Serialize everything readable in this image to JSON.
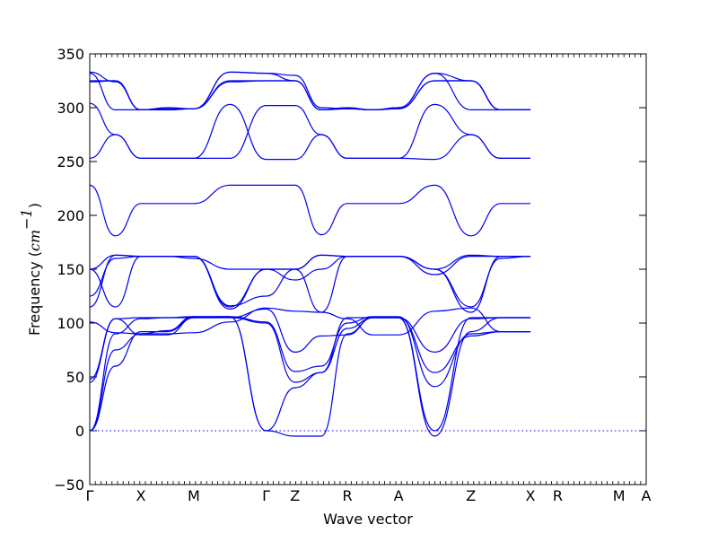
{
  "chart_data": {
    "type": "line",
    "title": "",
    "xlabel": "Wave vector",
    "ylabel": "Frequency",
    "ylabel_unit": "cm",
    "ylabel_unit_exp": "−1",
    "ylim": [
      -50,
      350
    ],
    "yticks": [
      -50,
      0,
      50,
      100,
      150,
      200,
      250,
      300,
      350
    ],
    "ytick_labels": [
      "−50",
      "0",
      "50",
      "100",
      "150",
      "200",
      "250",
      "300",
      "350"
    ],
    "xlim": [
      0,
      100
    ],
    "high_symmetry_points": [
      {
        "label": "Γ",
        "x": 0
      },
      {
        "label": "X",
        "x": 9.2
      },
      {
        "label": "M",
        "x": 18.7
      },
      {
        "label": "Γ",
        "x": 31.7
      },
      {
        "label": "Z",
        "x": 36.9
      },
      {
        "label": "R",
        "x": 46.3
      },
      {
        "label": "A",
        "x": 55.5
      },
      {
        "label": "Z",
        "x": 68.5
      },
      {
        "label": "X",
        "x": 79.2
      },
      {
        "label": "R",
        "x": 84.1
      },
      {
        "label": "M",
        "x": 95.1
      },
      {
        "label": "A",
        "x": 100
      }
    ],
    "zero_line": 0,
    "line_color": "#0000ee",
    "zero_line_color": "#0000ee",
    "series": [
      {
        "values": [
          0,
          60,
          92,
          92,
          105,
          105,
          100,
          45,
          54,
          95,
          105,
          105,
          54,
          88,
          92,
          92
        ]
      },
      {
        "values": [
          0,
          75,
          90,
          93,
          106,
          106,
          101,
          55,
          60,
          100,
          106,
          106,
          41,
          90,
          92,
          92
        ]
      },
      {
        "values": [
          0,
          90,
          104,
          105,
          106,
          106,
          0,
          -5,
          -5,
          90,
          105,
          105,
          -5,
          92,
          105,
          105
        ]
      },
      {
        "values": [
          45,
          104,
          105,
          105,
          105,
          106,
          0,
          40,
          54,
          105,
          105,
          105,
          0,
          105,
          105,
          105
        ]
      },
      {
        "values": [
          48,
          104,
          89,
          89,
          105,
          105,
          113,
          73,
          88,
          89,
          105,
          105,
          73,
          104,
          105,
          105
        ]
      },
      {
        "values": [
          101,
          91,
          90,
          90,
          91,
          101,
          114,
          111,
          110,
          104,
          89,
          89,
          111,
          114,
          92,
          92
        ]
      },
      {
        "values": [
          115,
          163,
          162,
          162,
          162,
          116,
          125,
          150,
          163,
          162,
          162,
          162,
          150,
          110,
          162,
          162
        ]
      },
      {
        "values": [
          125,
          160,
          162,
          162,
          162,
          113,
          150,
          140,
          150,
          162,
          162,
          162,
          145,
          162,
          162,
          162
        ]
      },
      {
        "values": [
          150,
          163,
          162,
          162,
          162,
          115,
          150,
          150,
          163,
          162,
          162,
          162,
          150,
          163,
          162,
          162
        ]
      },
      {
        "values": [
          150,
          115,
          162,
          162,
          160,
          150,
          150,
          150,
          110,
          162,
          162,
          162,
          150,
          115,
          160,
          162
        ]
      },
      {
        "values": [
          228,
          181,
          211,
          211,
          211,
          228,
          228,
          228,
          182,
          211,
          211,
          211,
          228,
          181,
          211,
          211
        ]
      },
      {
        "values": [
          253,
          275,
          253,
          253,
          253,
          303,
          252,
          252,
          275,
          253,
          253,
          253,
          252,
          275,
          253,
          253
        ]
      },
      {
        "values": [
          304,
          275,
          253,
          253,
          253,
          253,
          302,
          302,
          275,
          253,
          253,
          253,
          303,
          275,
          253,
          253
        ]
      },
      {
        "values": [
          324,
          325,
          298,
          298,
          299,
          324,
          325,
          325,
          298,
          299,
          298,
          299,
          325,
          325,
          298,
          298
        ]
      },
      {
        "values": [
          325,
          325,
          298,
          298,
          299,
          325,
          325,
          325,
          298,
          299,
          298,
          299,
          325,
          325,
          298,
          298
        ]
      },
      {
        "values": [
          332,
          298,
          298,
          299,
          299,
          333,
          332,
          330,
          300,
          299,
          298,
          300,
          332,
          298,
          298,
          298
        ]
      },
      {
        "values": [
          333,
          324,
          298,
          300,
          299,
          333,
          332,
          325,
          298,
          300,
          298,
          300,
          332,
          325,
          298,
          298
        ]
      }
    ],
    "grid": false,
    "legend": "none"
  }
}
